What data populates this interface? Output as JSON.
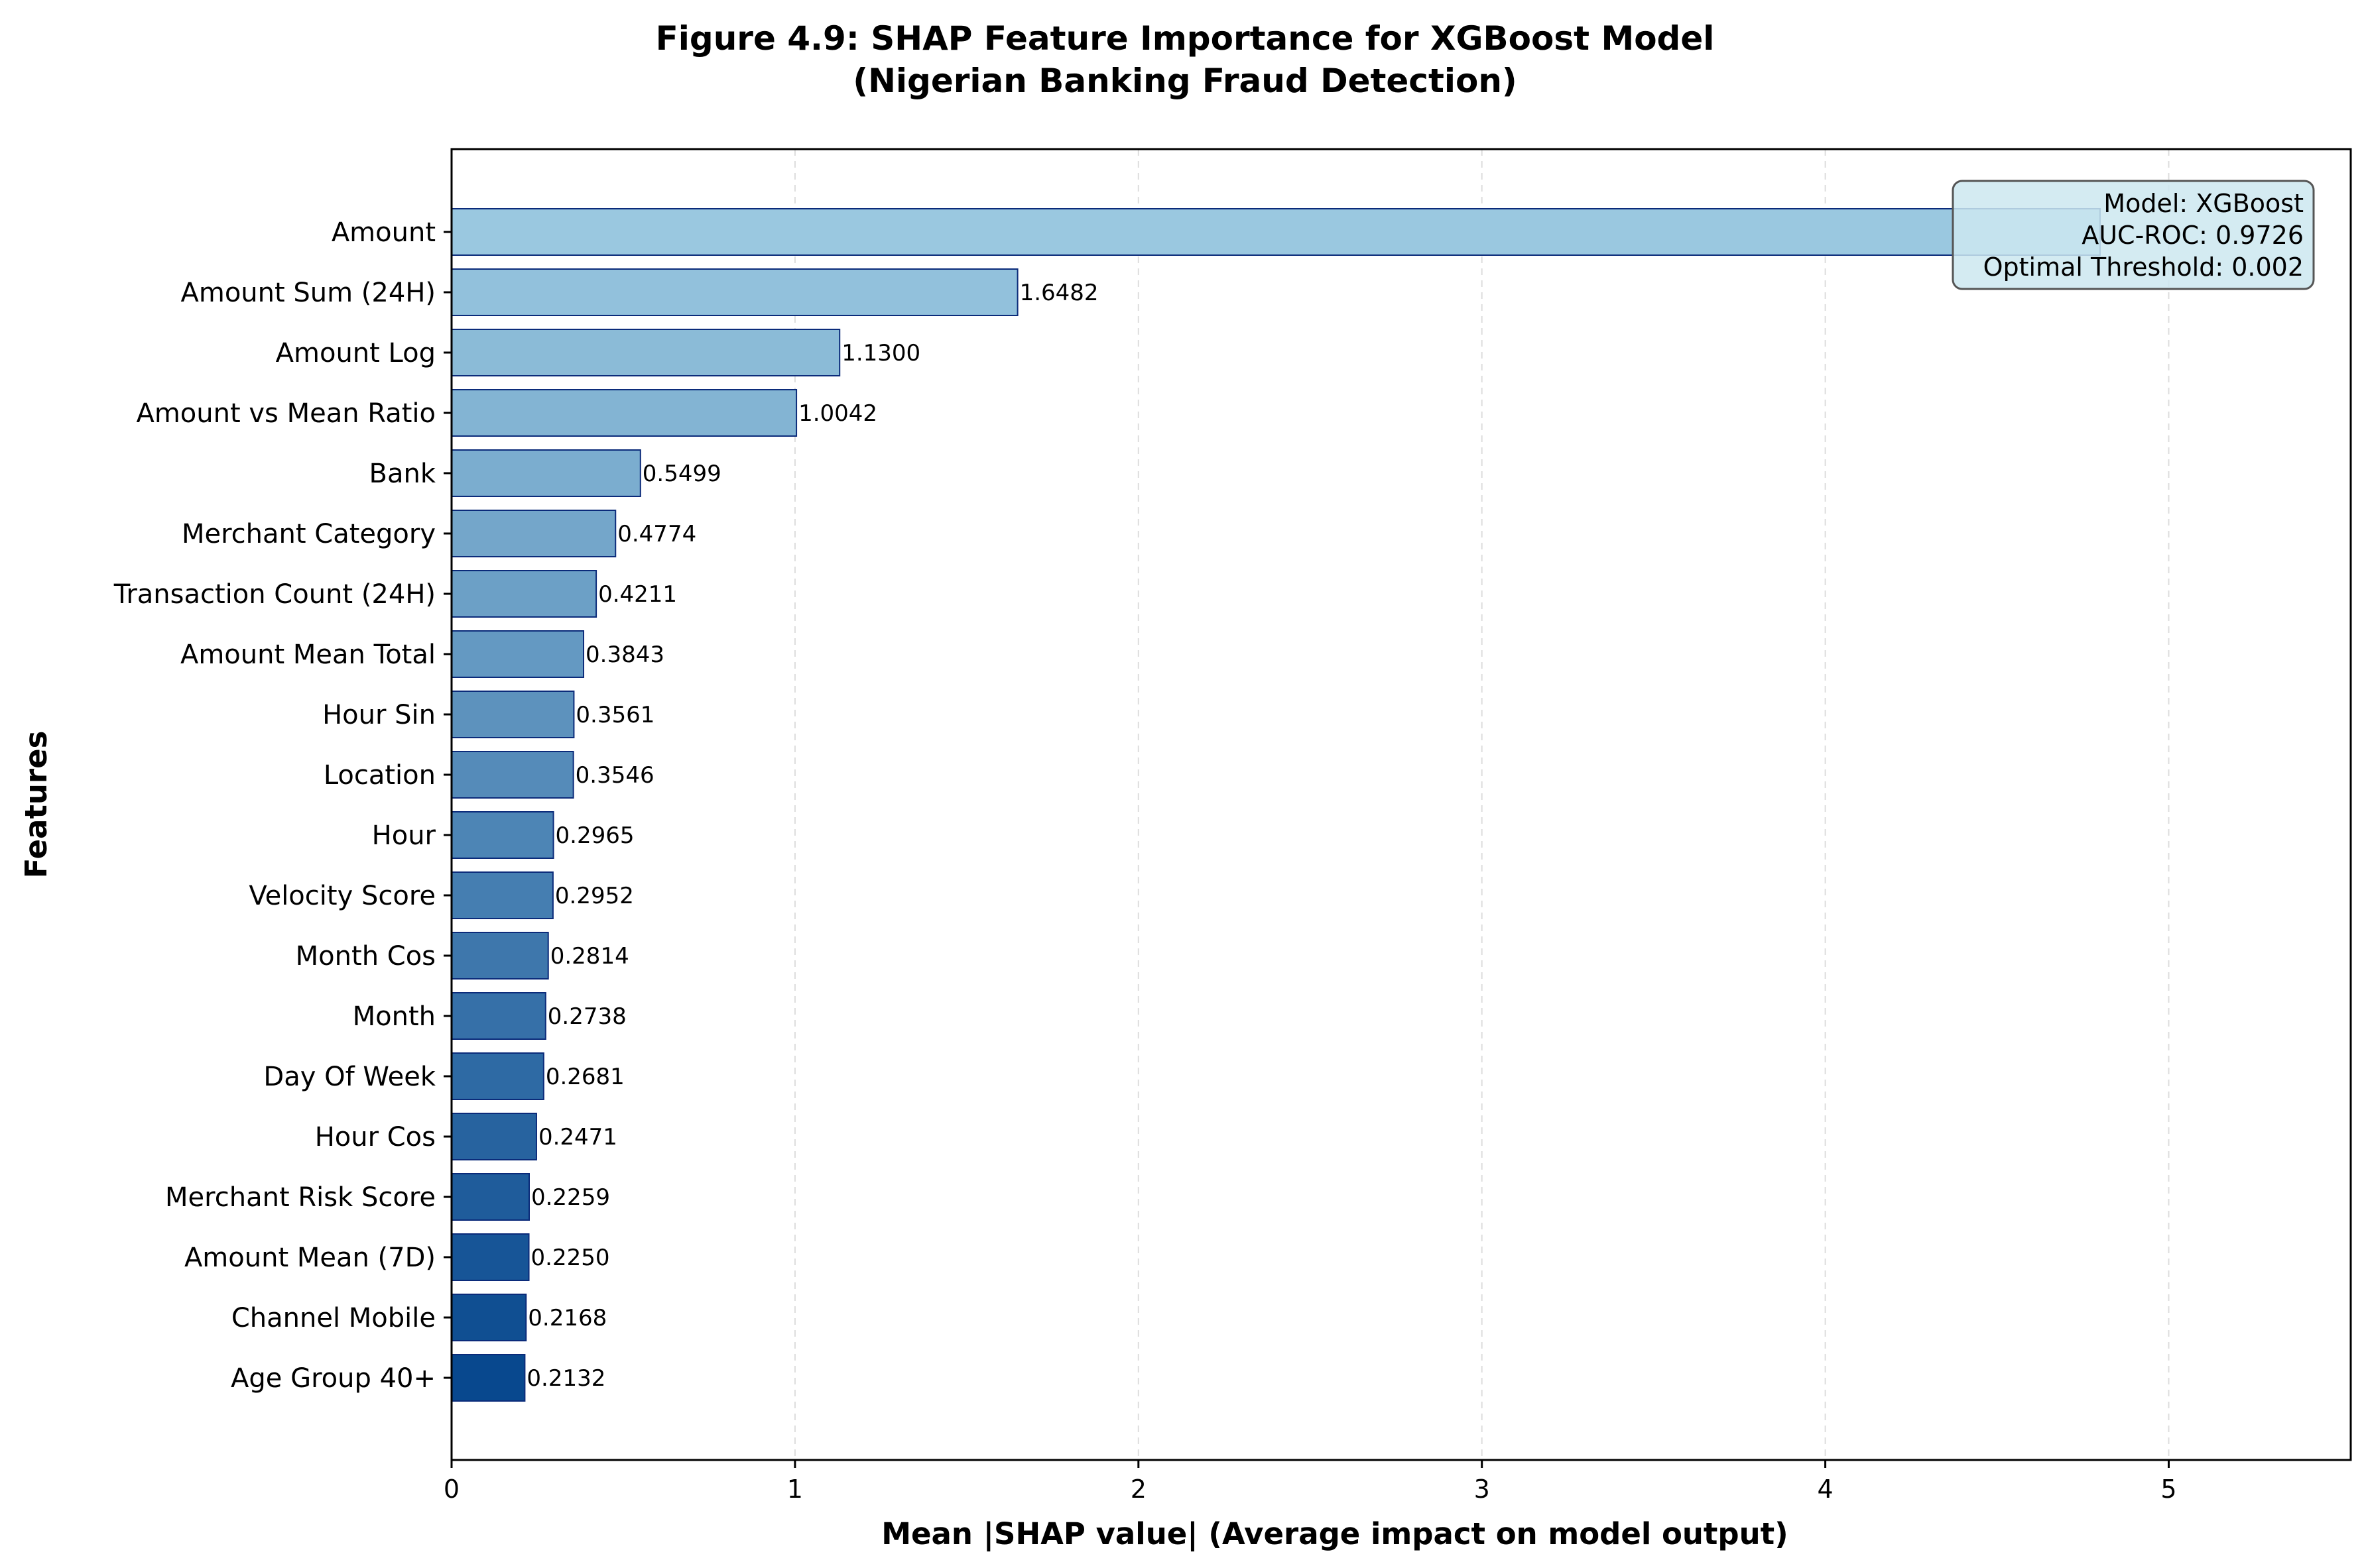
{
  "chart_data": {
    "type": "bar",
    "orientation": "horizontal",
    "title": "Figure 4.9: SHAP Feature Importance for XGBoost Model",
    "subtitle": "(Nigerian Banking Fraud Detection)",
    "xlabel": "Mean |SHAP value| (Average impact on model output)",
    "ylabel": "Features",
    "xlim": [
      0,
      5.53
    ],
    "xticks": [
      "0",
      "1",
      "2",
      "3",
      "4",
      "5"
    ],
    "grid": "x-dashed",
    "categories": [
      "Amount",
      "Amount Sum (24H)",
      "Amount Log",
      "Amount vs Mean Ratio",
      "Bank",
      "Merchant Category",
      "Transaction Count (24H)",
      "Amount Mean Total",
      "Hour Sin",
      "Location",
      "Hour",
      "Velocity Score",
      "Month Cos",
      "Month",
      "Day Of Week",
      "Hour Cos",
      "Merchant Risk Score",
      "Amount Mean (7D)",
      "Channel Mobile",
      "Age Group 40+"
    ],
    "values": [
      4.8,
      1.6482,
      1.13,
      1.0042,
      0.5499,
      0.4774,
      0.4211,
      0.3843,
      0.3561,
      0.3546,
      0.2965,
      0.2952,
      0.2814,
      0.2738,
      0.2681,
      0.2471,
      0.2259,
      0.225,
      0.2168,
      0.2132
    ],
    "value_labels": [
      "",
      "1.6482",
      "1.1300",
      "1.0042",
      "0.5499",
      "0.4774",
      "0.4211",
      "0.3843",
      "0.3561",
      "0.3546",
      "0.2965",
      "0.2952",
      "0.2814",
      "0.2738",
      "0.2681",
      "0.2471",
      "0.2259",
      "0.2250",
      "0.2168",
      "0.2132"
    ],
    "colors": {
      "bar_light": "#9ac8e0",
      "bar_dark": "#08488e",
      "bar_edge": "#0b2b7a",
      "grid": "#dddddd",
      "legend_bg": "#cce7f0",
      "legend_edge": "#555555"
    },
    "annotation": {
      "placement": "top-right",
      "lines": [
        "Model: XGBoost",
        "AUC-ROC: 0.9726",
        "Optimal Threshold: 0.002"
      ]
    }
  }
}
